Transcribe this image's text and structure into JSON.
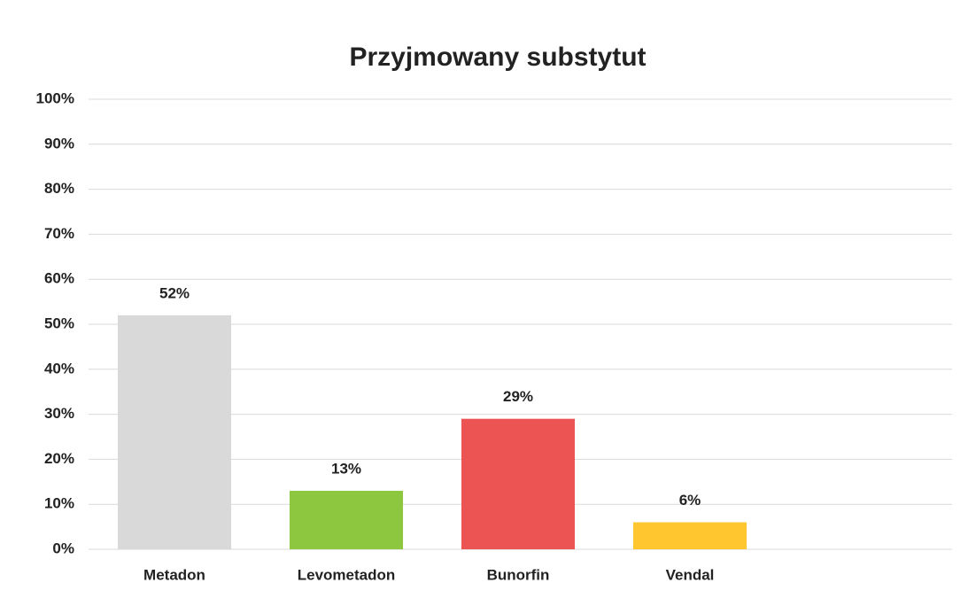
{
  "chart_data": {
    "type": "bar",
    "title": "Przyjmowany substytut",
    "categories": [
      "Metadon",
      "Levometadon",
      "Bunorfin",
      "Vendal"
    ],
    "values": [
      52,
      13,
      29,
      6
    ],
    "value_labels": [
      "52%",
      "13%",
      "29%",
      "6%"
    ],
    "colors": [
      "#d9d9d9",
      "#8dc63f",
      "#ec5353",
      "#ffc62f"
    ],
    "ylim": [
      0,
      100
    ],
    "yticks": [
      {
        "value": 0,
        "label": "0%"
      },
      {
        "value": 10,
        "label": "10%"
      },
      {
        "value": 20,
        "label": "20%"
      },
      {
        "value": 30,
        "label": "30%"
      },
      {
        "value": 40,
        "label": "40%"
      },
      {
        "value": 50,
        "label": "50%"
      },
      {
        "value": 60,
        "label": "60%"
      },
      {
        "value": 70,
        "label": "70%"
      },
      {
        "value": 80,
        "label": "80%"
      },
      {
        "value": 90,
        "label": "90%"
      },
      {
        "value": 100,
        "label": "100%"
      }
    ],
    "grid": true
  }
}
